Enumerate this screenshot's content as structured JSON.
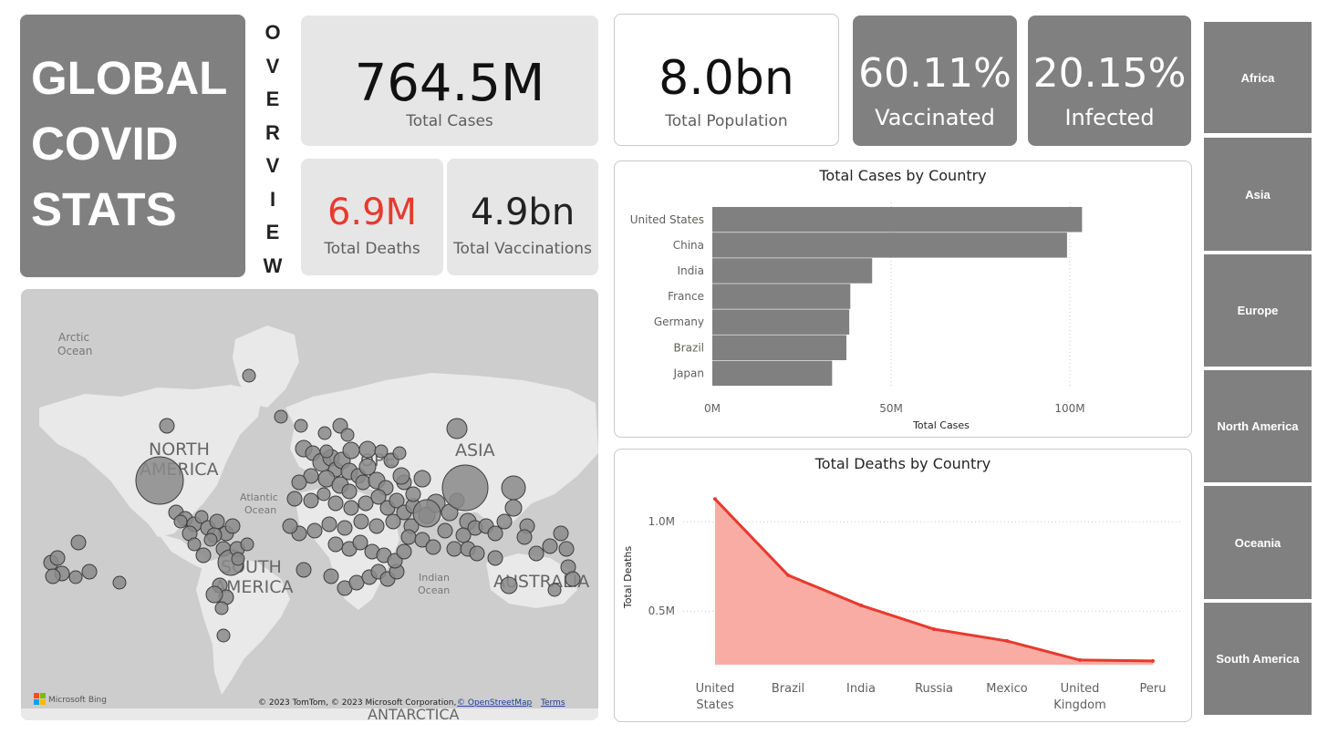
{
  "title": {
    "lines": [
      "GLOBAL",
      "COVID",
      "STATS"
    ]
  },
  "overview_letters": [
    "O",
    "V",
    "E",
    "R",
    "V",
    "I",
    "E",
    "W"
  ],
  "kpis": {
    "total_cases": {
      "value": "764.5M",
      "label": "Total Cases"
    },
    "total_deaths": {
      "value": "6.9M",
      "label": "Total Deaths",
      "color": "#e8392e"
    },
    "total_vaccinations": {
      "value": "4.9bn",
      "label": "Total Vaccinations"
    },
    "total_population": {
      "value": "8.0bn",
      "label": "Total Population"
    },
    "vaccinated": {
      "value": "60.11%",
      "label": "Vaccinated"
    },
    "infected": {
      "value": "20.15%",
      "label": "Infected"
    }
  },
  "continents": [
    "Africa",
    "Asia",
    "Europe",
    "North America",
    "Oceania",
    "South America"
  ],
  "map": {
    "labels": {
      "arctic": [
        "Arctic",
        "Ocean"
      ],
      "north_america": [
        "NORTH",
        "AMERICA"
      ],
      "europe": "OPE",
      "asia": "ASIA",
      "atlantic": [
        "Atlantic",
        "Ocean"
      ],
      "south_america": [
        "SOUTH",
        "AMERICA"
      ],
      "indian": [
        "Indian",
        "Ocean"
      ],
      "australia": "AUSTRALIA",
      "antarctica": "ANTARCTICA"
    },
    "bing": "Microsoft Bing",
    "attribution": "© 2023 TomTom, © 2023 Microsoft Corporation,",
    "osm_link": "© OpenStreetMap",
    "terms_link": "Terms",
    "bubble_fill": "#8a8a8a",
    "land_color": "#e9e9e9",
    "water_color": "#cdcdcd"
  },
  "chart_data": [
    {
      "type": "bar",
      "title": "Total Cases by Country",
      "categories": [
        "United States",
        "China",
        "India",
        "France",
        "Germany",
        "Brazil",
        "Japan"
      ],
      "values": [
        103.4,
        99.2,
        44.7,
        38.6,
        38.3,
        37.5,
        33.5
      ],
      "unit": "M",
      "xlabel": "Total Cases",
      "xticks": [
        "0M",
        "50M",
        "100M"
      ],
      "xlim": [
        0,
        113
      ],
      "color": "#808080"
    },
    {
      "type": "area",
      "title": "Total Deaths by Country",
      "categories": [
        [
          "United",
          "States"
        ],
        [
          "Brazil"
        ],
        [
          "India"
        ],
        [
          "Russia"
        ],
        [
          "Mexico"
        ],
        [
          "United",
          "Kingdom"
        ],
        [
          "Peru"
        ]
      ],
      "values": [
        1.127,
        0.701,
        0.532,
        0.399,
        0.333,
        0.226,
        0.221
      ],
      "unit": "M",
      "ylabel": "Total Deaths",
      "yticks": [
        "0.5M",
        "1.0M"
      ],
      "ylim": [
        0.2,
        1.2
      ],
      "line_color": "#e8392e",
      "fill_color": "#f9aca4"
    }
  ]
}
